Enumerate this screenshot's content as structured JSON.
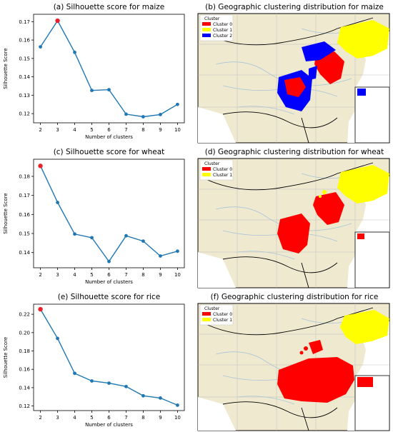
{
  "colors": {
    "line": "#1f77b4",
    "highlight": "#e8222a",
    "land": "#efe9cf",
    "sea": "#ffffff",
    "river": "#a9c4d8",
    "cluster_red": "#ff0000",
    "cluster_yellow": "#ffff00",
    "cluster_blue": "#0000ff"
  },
  "chart_data": [
    {
      "type": "line",
      "title": "(a) Silhouette score for maize",
      "xlabel": "Number of clusters",
      "ylabel": "Silhouette Score",
      "x": [
        2,
        3,
        4,
        5,
        6,
        7,
        8,
        9,
        10
      ],
      "y": [
        0.1563,
        0.1705,
        0.1533,
        0.1326,
        0.133,
        0.1197,
        0.1183,
        0.1195,
        0.125
      ],
      "ylim": [
        0.115,
        0.174
      ],
      "yticks": [
        0.12,
        0.13,
        0.14,
        0.15,
        0.16,
        0.17
      ],
      "ytick_labels": [
        "0.12",
        "0.13",
        "0.14",
        "0.15",
        "0.16",
        "0.17"
      ],
      "highlight_index": 1
    },
    {
      "type": "line",
      "title": "(c) Silhouette score for wheat",
      "xlabel": "Number of clusters",
      "ylabel": "Silhouette Score",
      "x": [
        2,
        3,
        4,
        5,
        6,
        7,
        8,
        9,
        10
      ],
      "y": [
        0.1855,
        0.1663,
        0.1497,
        0.1478,
        0.1353,
        0.1488,
        0.146,
        0.1382,
        0.1407
      ],
      "ylim": [
        0.132,
        0.189
      ],
      "yticks": [
        0.14,
        0.15,
        0.16,
        0.17,
        0.18
      ],
      "ytick_labels": [
        "0.14",
        "0.15",
        "0.16",
        "0.17",
        "0.18"
      ],
      "highlight_index": 0
    },
    {
      "type": "line",
      "title": "(e) Silhouette score for rice",
      "xlabel": "Number of clusters",
      "ylabel": "Silhouette Score",
      "x": [
        2,
        3,
        4,
        5,
        6,
        7,
        8,
        9,
        10
      ],
      "y": [
        0.2255,
        0.1937,
        0.1556,
        0.1473,
        0.1449,
        0.1412,
        0.1311,
        0.1287,
        0.1209
      ],
      "ylim": [
        0.115,
        0.231
      ],
      "yticks": [
        0.12,
        0.14,
        0.16,
        0.18,
        0.2,
        0.22
      ],
      "ytick_labels": [
        "0.12",
        "0.14",
        "0.16",
        "0.18",
        "0.20",
        "0.22"
      ],
      "highlight_index": 0
    }
  ],
  "maps": [
    {
      "title": "(b) Geographic clustering distribution for maize",
      "legend_title": "Cluster",
      "legend": [
        {
          "label": "Cluster 0",
          "color": "#ff0000"
        },
        {
          "label": "Cluster 1",
          "color": "#ffff00"
        },
        {
          "label": "Cluster 2",
          "color": "#0000ff"
        }
      ]
    },
    {
      "title": "(d) Geographic clustering distribution for wheat",
      "legend_title": "Cluster",
      "legend": [
        {
          "label": "Cluster 0",
          "color": "#ff0000"
        },
        {
          "label": "Cluster 1",
          "color": "#ffff00"
        }
      ]
    },
    {
      "title": "(f) Geographic clustering distribution for rice",
      "legend_title": "Cluster",
      "legend": [
        {
          "label": "Cluster 0",
          "color": "#ff0000"
        },
        {
          "label": "Cluster 1",
          "color": "#ffff00"
        }
      ]
    }
  ]
}
